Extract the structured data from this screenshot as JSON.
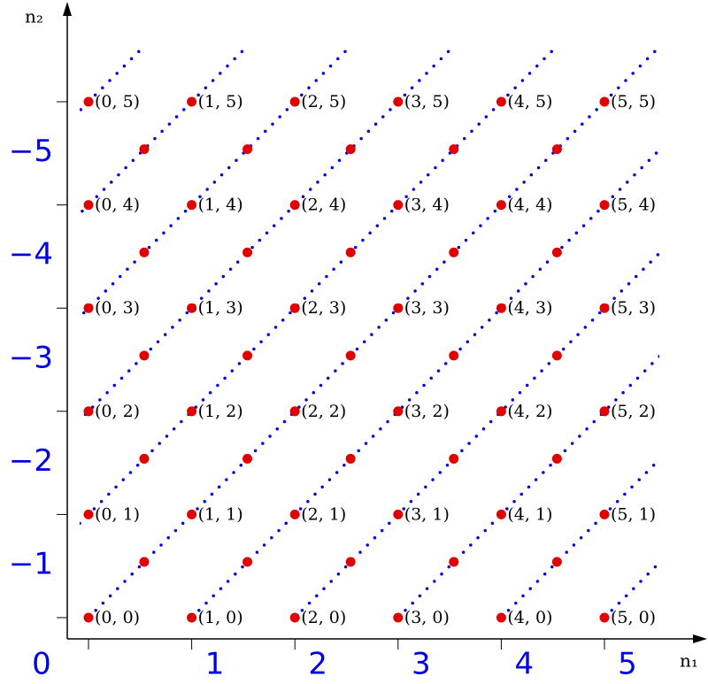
{
  "axis_labels": {
    "vertical": "n₂",
    "horizontal": "n₁"
  },
  "x_labels": [
    "0",
    "1",
    "2",
    "3",
    "4",
    "5"
  ],
  "y_labels": [
    "−1",
    "−2",
    "−3",
    "−4",
    "−5"
  ],
  "points": [
    [
      "(0, 0)",
      "(1, 0)",
      "(2, 0)",
      "(3, 0)",
      "(4, 0)",
      "(5, 0)"
    ],
    [
      "(0, 1)",
      "(1, 1)",
      "(2, 1)",
      "(3, 1)",
      "(4, 1)",
      "(5, 1)"
    ],
    [
      "(0, 2)",
      "(1, 2)",
      "(2, 2)",
      "(3, 2)",
      "(4, 2)",
      "(5, 2)"
    ],
    [
      "(0, 3)",
      "(1, 3)",
      "(2, 3)",
      "(3, 3)",
      "(4, 3)",
      "(5, 3)"
    ],
    [
      "(0, 4)",
      "(1, 4)",
      "(2, 4)",
      "(3, 4)",
      "(4, 4)",
      "(5, 4)"
    ],
    [
      "(0, 5)",
      "(1, 5)",
      "(2, 5)",
      "(3, 5)",
      "(4, 5)",
      "(5, 5)"
    ]
  ]
}
